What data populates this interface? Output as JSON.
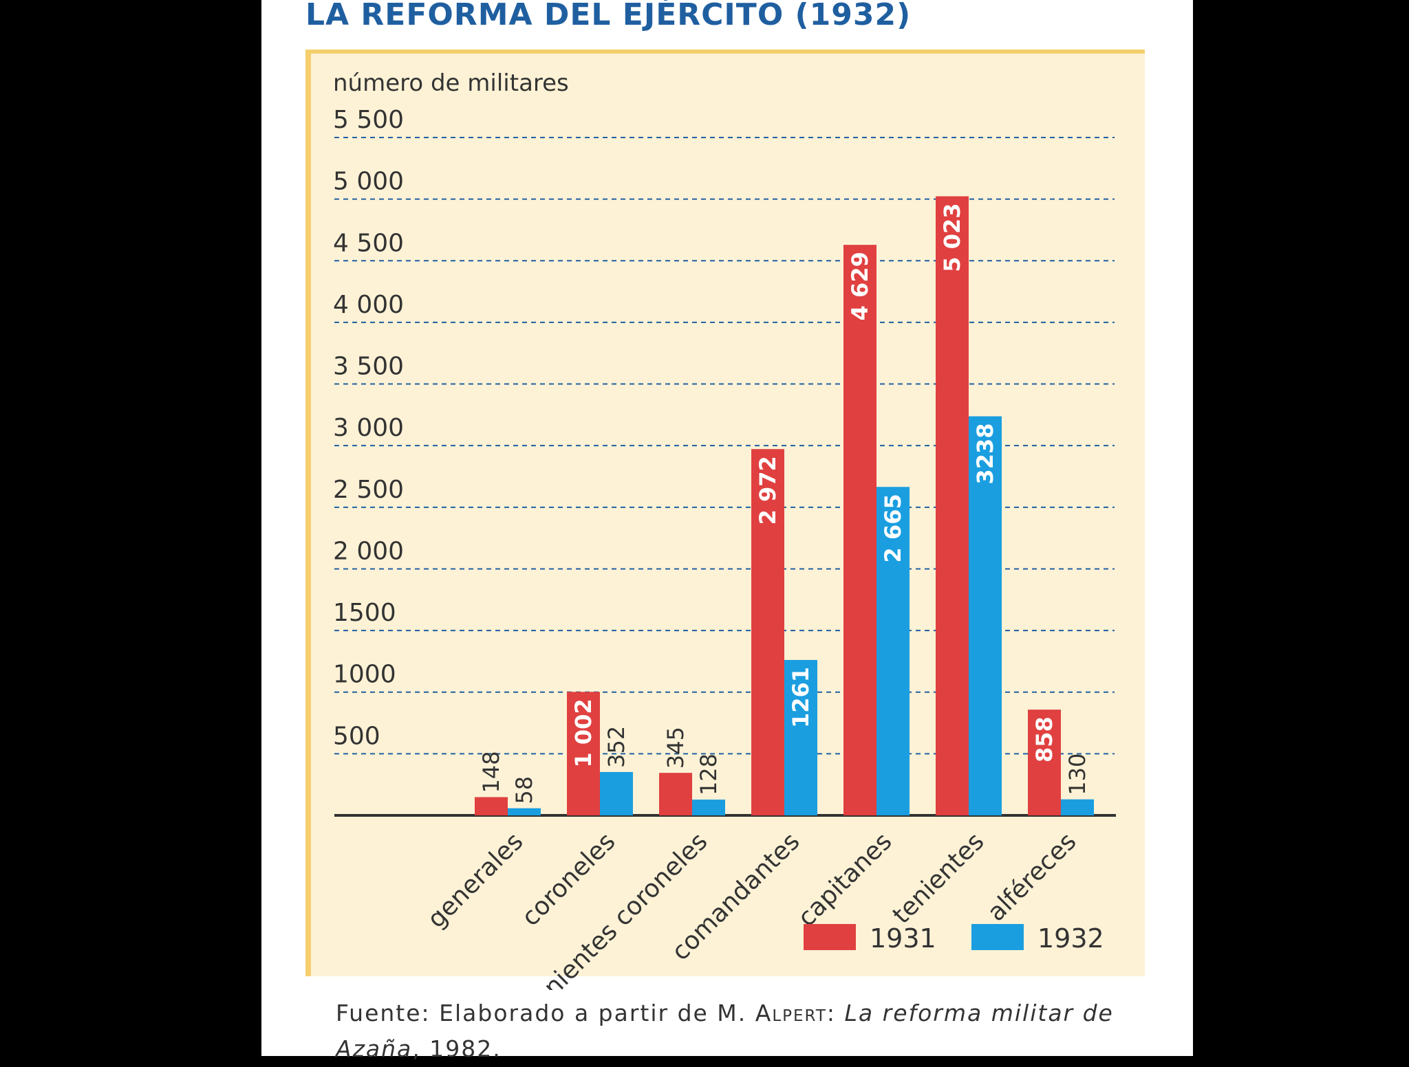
{
  "chart_data": {
    "type": "bar",
    "title": "LA REFORMA DEL EJÉRCITO (1932)",
    "ylabel": "número de militares",
    "ylim": [
      0,
      5500
    ],
    "yticks": [
      500,
      1000,
      1500,
      2000,
      2500,
      3000,
      3500,
      4000,
      4500,
      5000,
      5500
    ],
    "ytick_labels": [
      "500",
      "1000",
      "1500",
      "2 000",
      "2 500",
      "3 000",
      "3 500",
      "4 000",
      "4 500",
      "5 000",
      "5 500"
    ],
    "grid": true,
    "legend_position": "bottom-right",
    "categories": [
      "generales",
      "coroneles",
      "tenientes coroneles",
      "comandantes",
      "capitanes",
      "tenientes",
      "alféreces"
    ],
    "series": [
      {
        "name": "1931",
        "color": "#e04040",
        "values": [
          148,
          1002,
          345,
          2972,
          4629,
          5023,
          858
        ],
        "labels": [
          "148",
          "1 002",
          "345",
          "2 972",
          "4 629",
          "5 023",
          "858"
        ]
      },
      {
        "name": "1932",
        "color": "#1a9ee0",
        "values": [
          58,
          352,
          128,
          1261,
          2665,
          3238,
          130
        ],
        "labels": [
          "58",
          "352",
          "128",
          "1261",
          "2 665",
          "3238",
          "130"
        ]
      }
    ]
  },
  "source": {
    "prefix": "Fuente: Elaborado a partir de M. ",
    "author": "Alpert",
    "colon": ": ",
    "work": "La reforma militar de Azaña",
    "suffix": ", 1982."
  }
}
